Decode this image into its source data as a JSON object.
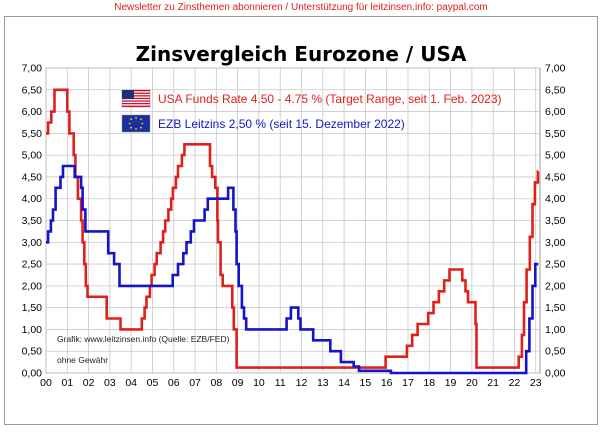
{
  "header": {
    "newsletter": "Newsletter zu Zinsthemen abonnieren / Unterstützung für leitzinsen.info: paypal.com"
  },
  "footnotes": {
    "source": "Grafik: www.leitzinsen.info (Quelle: EZB/FED)",
    "disclaimer": "ohne Gewähr"
  },
  "chart_data": {
    "type": "line",
    "title": "Zinsvergleich Eurozone / USA",
    "xlabel": "",
    "ylabel": "",
    "xlim": [
      2000,
      2023.2
    ],
    "ylim": [
      0,
      7
    ],
    "x_tick_labels": [
      "00",
      "01",
      "02",
      "03",
      "04",
      "05",
      "06",
      "07",
      "08",
      "09",
      "10",
      "11",
      "12",
      "13",
      "14",
      "15",
      "16",
      "17",
      "18",
      "19",
      "20",
      "21",
      "22",
      "23"
    ],
    "y_tick_labels": [
      "0,00",
      "0,50",
      "1,00",
      "1,50",
      "2,00",
      "2,50",
      "3,00",
      "3,50",
      "4,00",
      "4,50",
      "5,00",
      "5,50",
      "6,00",
      "6,50",
      "7,00"
    ],
    "grid": true,
    "legend_position": "top-center",
    "series": [
      {
        "name": "USA Funds Rate 4.50 - 4.75 % (Target Range, seit 1. Feb. 2023)",
        "color": "#e0201b",
        "flag": "us-flag",
        "steps": [
          [
            2000.0,
            5.5
          ],
          [
            2000.1,
            5.75
          ],
          [
            2000.25,
            6.0
          ],
          [
            2000.4,
            6.5
          ],
          [
            2001.0,
            6.0
          ],
          [
            2001.1,
            5.5
          ],
          [
            2001.3,
            5.0
          ],
          [
            2001.38,
            4.5
          ],
          [
            2001.5,
            4.0
          ],
          [
            2001.65,
            3.5
          ],
          [
            2001.72,
            3.0
          ],
          [
            2001.8,
            2.5
          ],
          [
            2001.87,
            2.0
          ],
          [
            2001.95,
            1.75
          ],
          [
            2002.85,
            1.25
          ],
          [
            2003.5,
            1.0
          ],
          [
            2004.5,
            1.25
          ],
          [
            2004.63,
            1.5
          ],
          [
            2004.72,
            1.75
          ],
          [
            2004.88,
            2.0
          ],
          [
            2004.96,
            2.25
          ],
          [
            2005.1,
            2.5
          ],
          [
            2005.2,
            2.75
          ],
          [
            2005.38,
            3.0
          ],
          [
            2005.5,
            3.25
          ],
          [
            2005.6,
            3.5
          ],
          [
            2005.75,
            3.75
          ],
          [
            2005.88,
            4.0
          ],
          [
            2005.96,
            4.25
          ],
          [
            2006.1,
            4.5
          ],
          [
            2006.2,
            4.75
          ],
          [
            2006.38,
            5.0
          ],
          [
            2006.5,
            5.25
          ],
          [
            2007.7,
            4.75
          ],
          [
            2007.8,
            4.5
          ],
          [
            2007.95,
            4.25
          ],
          [
            2008.05,
            3.5
          ],
          [
            2008.08,
            3.0
          ],
          [
            2008.2,
            2.25
          ],
          [
            2008.3,
            2.0
          ],
          [
            2008.75,
            1.5
          ],
          [
            2008.82,
            1.0
          ],
          [
            2008.95,
            0.125
          ],
          [
            2015.95,
            0.375
          ],
          [
            2016.95,
            0.625
          ],
          [
            2017.2,
            0.875
          ],
          [
            2017.45,
            1.125
          ],
          [
            2017.95,
            1.375
          ],
          [
            2018.2,
            1.625
          ],
          [
            2018.45,
            1.875
          ],
          [
            2018.7,
            2.125
          ],
          [
            2018.95,
            2.375
          ],
          [
            2019.55,
            2.125
          ],
          [
            2019.7,
            1.875
          ],
          [
            2019.82,
            1.625
          ],
          [
            2020.17,
            1.125
          ],
          [
            2020.22,
            0.125
          ],
          [
            2022.2,
            0.375
          ],
          [
            2022.35,
            0.875
          ],
          [
            2022.45,
            1.625
          ],
          [
            2022.57,
            2.375
          ],
          [
            2022.72,
            3.125
          ],
          [
            2022.85,
            3.875
          ],
          [
            2022.96,
            4.375
          ],
          [
            2023.1,
            4.625
          ],
          [
            2023.12,
            4.625
          ]
        ]
      },
      {
        "name": "EZB Leitzins 2,50 %  (seit 15. Dezember 2022)",
        "color": "#1414c8",
        "flag": "eu-flag",
        "steps": [
          [
            2000.0,
            3.0
          ],
          [
            2000.1,
            3.25
          ],
          [
            2000.23,
            3.5
          ],
          [
            2000.33,
            3.75
          ],
          [
            2000.45,
            4.25
          ],
          [
            2000.68,
            4.5
          ],
          [
            2000.8,
            4.75
          ],
          [
            2001.35,
            4.5
          ],
          [
            2001.65,
            4.25
          ],
          [
            2001.72,
            3.75
          ],
          [
            2001.85,
            3.25
          ],
          [
            2002.92,
            2.75
          ],
          [
            2003.2,
            2.5
          ],
          [
            2003.45,
            2.0
          ],
          [
            2005.95,
            2.25
          ],
          [
            2006.2,
            2.5
          ],
          [
            2006.45,
            2.75
          ],
          [
            2006.6,
            3.0
          ],
          [
            2006.8,
            3.25
          ],
          [
            2006.95,
            3.5
          ],
          [
            2007.45,
            3.75
          ],
          [
            2007.6,
            4.0
          ],
          [
            2008.55,
            4.25
          ],
          [
            2008.8,
            3.75
          ],
          [
            2008.9,
            3.25
          ],
          [
            2008.95,
            2.5
          ],
          [
            2009.05,
            2.0
          ],
          [
            2009.2,
            1.5
          ],
          [
            2009.3,
            1.25
          ],
          [
            2009.4,
            1.0
          ],
          [
            2011.3,
            1.25
          ],
          [
            2011.5,
            1.5
          ],
          [
            2011.85,
            1.25
          ],
          [
            2011.95,
            1.0
          ],
          [
            2012.55,
            0.75
          ],
          [
            2013.35,
            0.5
          ],
          [
            2013.85,
            0.25
          ],
          [
            2014.45,
            0.15
          ],
          [
            2014.7,
            0.05
          ],
          [
            2016.2,
            0.0
          ],
          [
            2022.55,
            0.5
          ],
          [
            2022.7,
            1.25
          ],
          [
            2022.85,
            2.0
          ],
          [
            2022.98,
            2.5
          ],
          [
            2023.12,
            2.5
          ]
        ]
      }
    ]
  }
}
